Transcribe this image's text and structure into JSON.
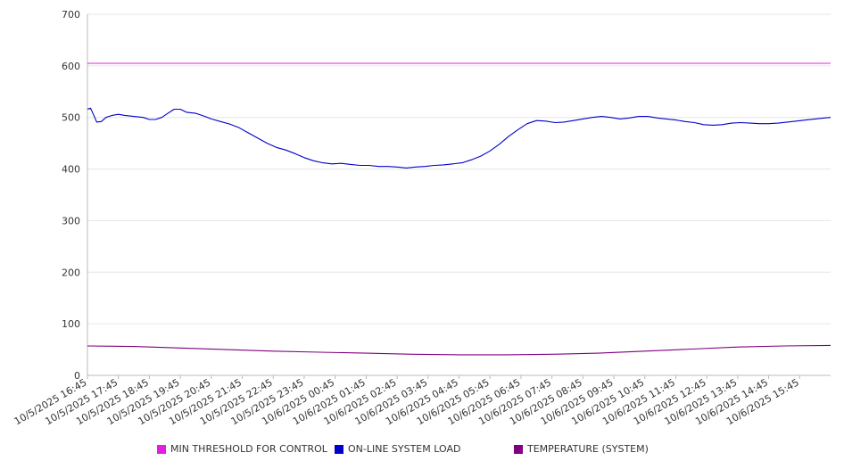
{
  "chart_data": {
    "type": "line",
    "title": "",
    "xlabel": "",
    "ylabel": "",
    "ylim": [
      0,
      700
    ],
    "yticks": [
      0,
      100,
      200,
      300,
      400,
      500,
      600,
      700
    ],
    "grid": true,
    "legend_position": "bottom",
    "x_tick_labels": [
      "10/5/2025 16:45",
      "10/5/2025 17:45",
      "10/5/2025 18:45",
      "10/5/2025 19:45",
      "10/5/2025 20:45",
      "10/5/2025 21:45",
      "10/5/2025 22:45",
      "10/5/2025 23:45",
      "10/6/2025 00:45",
      "10/6/2025 01:45",
      "10/6/2025 02:45",
      "10/6/2025 03:45",
      "10/6/2025 04:45",
      "10/6/2025 05:45",
      "10/6/2025 06:45",
      "10/6/2025 07:45",
      "10/6/2025 08:45",
      "10/6/2025 09:45",
      "10/6/2025 10:45",
      "10/6/2025 11:45",
      "10/6/2025 12:45",
      "10/6/2025 13:45",
      "10/6/2025 14:45",
      "10/6/2025 15:45"
    ],
    "x_range_hours": [
      0,
      24
    ],
    "series": [
      {
        "name": "MIN THRESHOLD FOR CONTROL",
        "color": "#e020e0",
        "points": [
          [
            0,
            605
          ],
          [
            24,
            605
          ]
        ]
      },
      {
        "name": "ON-LINE SYSTEM LOAD",
        "color": "#0000cc",
        "points": [
          [
            0,
            516
          ],
          [
            0.1,
            518
          ],
          [
            0.2,
            505
          ],
          [
            0.3,
            491
          ],
          [
            0.45,
            492
          ],
          [
            0.6,
            500
          ],
          [
            0.8,
            504
          ],
          [
            1.0,
            506
          ],
          [
            1.2,
            504
          ],
          [
            1.5,
            502
          ],
          [
            1.8,
            500
          ],
          [
            2.0,
            496
          ],
          [
            2.2,
            496
          ],
          [
            2.4,
            500
          ],
          [
            2.6,
            508
          ],
          [
            2.8,
            516
          ],
          [
            3.0,
            516
          ],
          [
            3.2,
            510
          ],
          [
            3.5,
            508
          ],
          [
            3.8,
            502
          ],
          [
            4.0,
            497
          ],
          [
            4.3,
            492
          ],
          [
            4.6,
            487
          ],
          [
            4.9,
            480
          ],
          [
            5.2,
            470
          ],
          [
            5.5,
            460
          ],
          [
            5.8,
            450
          ],
          [
            6.1,
            442
          ],
          [
            6.4,
            437
          ],
          [
            6.7,
            430
          ],
          [
            7.0,
            422
          ],
          [
            7.3,
            416
          ],
          [
            7.6,
            412
          ],
          [
            7.9,
            410
          ],
          [
            8.2,
            411
          ],
          [
            8.5,
            409
          ],
          [
            8.8,
            407
          ],
          [
            9.1,
            407
          ],
          [
            9.4,
            405
          ],
          [
            9.7,
            405
          ],
          [
            10.0,
            404
          ],
          [
            10.3,
            402
          ],
          [
            10.6,
            404
          ],
          [
            10.9,
            405
          ],
          [
            11.2,
            407
          ],
          [
            11.5,
            408
          ],
          [
            11.8,
            410
          ],
          [
            12.1,
            412
          ],
          [
            12.4,
            418
          ],
          [
            12.7,
            425
          ],
          [
            13.0,
            435
          ],
          [
            13.3,
            448
          ],
          [
            13.6,
            463
          ],
          [
            13.9,
            476
          ],
          [
            14.2,
            488
          ],
          [
            14.5,
            494
          ],
          [
            14.8,
            493
          ],
          [
            15.1,
            490
          ],
          [
            15.4,
            491
          ],
          [
            15.7,
            494
          ],
          [
            16.0,
            497
          ],
          [
            16.3,
            500
          ],
          [
            16.6,
            502
          ],
          [
            16.9,
            500
          ],
          [
            17.2,
            497
          ],
          [
            17.5,
            499
          ],
          [
            17.8,
            502
          ],
          [
            18.1,
            502
          ],
          [
            18.4,
            499
          ],
          [
            18.7,
            497
          ],
          [
            19.0,
            495
          ],
          [
            19.3,
            492
          ],
          [
            19.6,
            490
          ],
          [
            19.9,
            486
          ],
          [
            20.2,
            485
          ],
          [
            20.5,
            486
          ],
          [
            20.8,
            489
          ],
          [
            21.1,
            490
          ],
          [
            21.4,
            489
          ],
          [
            21.7,
            488
          ],
          [
            22.0,
            488
          ],
          [
            22.3,
            489
          ],
          [
            22.6,
            491
          ],
          [
            22.9,
            493
          ],
          [
            23.2,
            495
          ],
          [
            23.5,
            497
          ],
          [
            23.8,
            499
          ],
          [
            24.0,
            500
          ]
        ]
      },
      {
        "name": "TEMPERATURE (SYSTEM)",
        "color": "#800080",
        "points": [
          [
            0,
            57
          ],
          [
            1.5,
            56
          ],
          [
            3,
            53
          ],
          [
            4.5,
            50
          ],
          [
            6,
            47
          ],
          [
            7.5,
            45
          ],
          [
            9,
            43
          ],
          [
            10.5,
            41
          ],
          [
            12,
            40
          ],
          [
            13.5,
            40
          ],
          [
            15,
            41
          ],
          [
            16.5,
            43
          ],
          [
            18,
            47
          ],
          [
            19.5,
            51
          ],
          [
            21,
            55
          ],
          [
            22.5,
            57
          ],
          [
            24,
            58
          ]
        ]
      }
    ]
  }
}
